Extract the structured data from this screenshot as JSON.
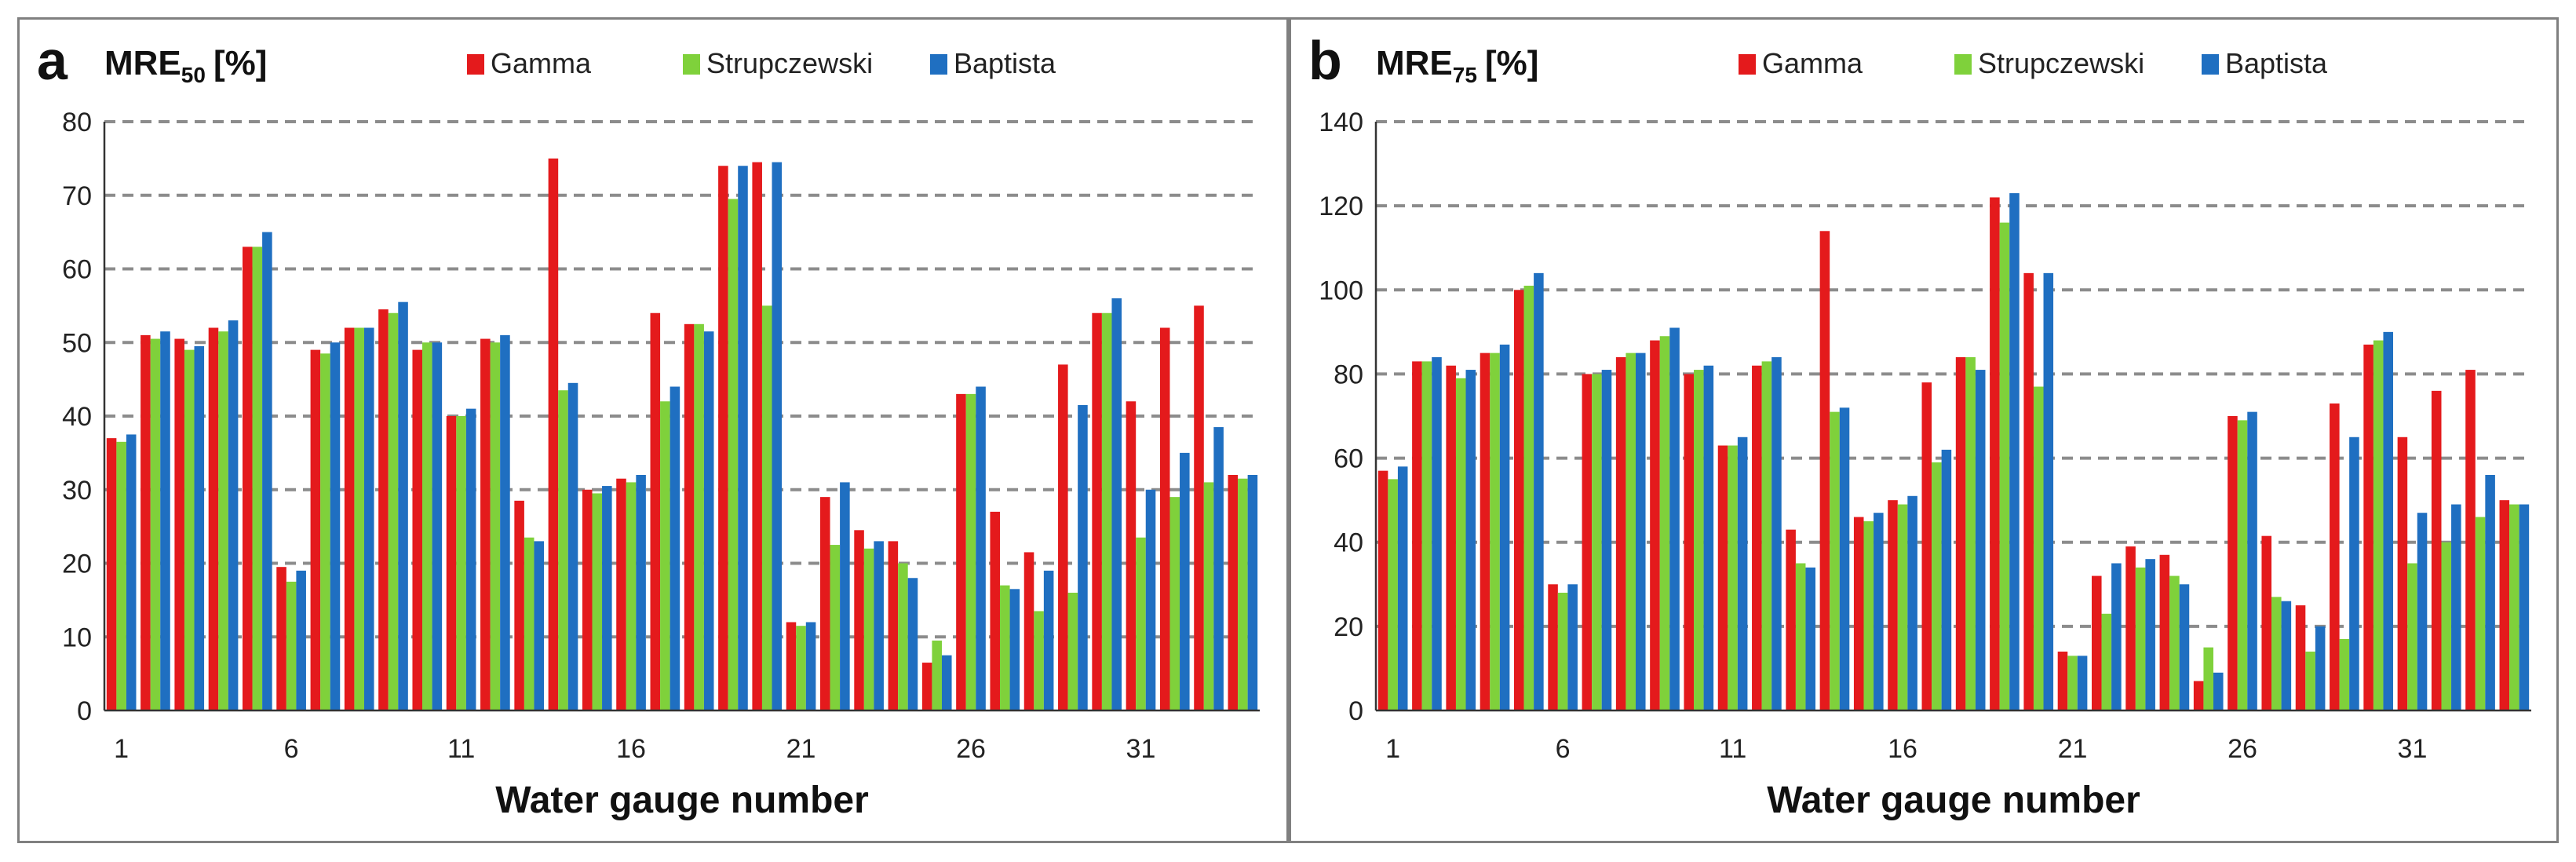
{
  "chart_data": [
    {
      "type": "bar",
      "panel_letter": "a",
      "title": "MRE",
      "title_subscript": "50",
      "title_unit": "[%]",
      "xlabel": "Water gauge number",
      "ylabel": "",
      "ylim": [
        0,
        80
      ],
      "yticks": [
        0,
        10,
        20,
        30,
        40,
        50,
        60,
        70,
        80
      ],
      "xtick_labels": [
        "1",
        "6",
        "11",
        "16",
        "21",
        "26",
        "31"
      ],
      "xtick_at": [
        1,
        6,
        11,
        16,
        21,
        26,
        31
      ],
      "categories": [
        1,
        2,
        3,
        4,
        5,
        6,
        7,
        8,
        9,
        10,
        11,
        12,
        13,
        14,
        15,
        16,
        17,
        18,
        19,
        20,
        21,
        22,
        23,
        24,
        25,
        26,
        27,
        28,
        29,
        30,
        31,
        32,
        33,
        34
      ],
      "grid": true,
      "legend_position": "top",
      "series": [
        {
          "name": "Gamma",
          "color": "#e41a1c",
          "values": [
            37,
            51,
            50.5,
            52,
            63,
            19.5,
            49,
            52,
            54.5,
            49,
            40,
            50.5,
            28.5,
            75,
            30,
            31.5,
            54,
            52.5,
            74,
            74.5,
            12,
            29,
            24.5,
            23,
            6.5,
            43,
            27,
            21.5,
            47,
            54,
            42,
            52,
            55,
            32
          ]
        },
        {
          "name": "Strupczewski",
          "color": "#7fd13b",
          "values": [
            36.5,
            50.5,
            49,
            51.5,
            63,
            17.5,
            48.5,
            52,
            54,
            50,
            40,
            50,
            23.5,
            43.5,
            29.5,
            31,
            42,
            52.5,
            69.5,
            55,
            11.5,
            22.5,
            22,
            20,
            9.5,
            43,
            17,
            13.5,
            16,
            54,
            23.5,
            29,
            31,
            31.5
          ]
        },
        {
          "name": "Baptista",
          "color": "#1f6fc1",
          "values": [
            37.5,
            51.5,
            49.5,
            53,
            65,
            19,
            50,
            52,
            55.5,
            50,
            41,
            51,
            23,
            44.5,
            30.5,
            32,
            44,
            51.5,
            74,
            74.5,
            12,
            31,
            23,
            18,
            7.5,
            44,
            16.5,
            19,
            41.5,
            56,
            30,
            35,
            38.5,
            32
          ]
        }
      ]
    },
    {
      "type": "bar",
      "panel_letter": "b",
      "title": "MRE",
      "title_subscript": "75",
      "title_unit": "[%]",
      "xlabel": "Water gauge number",
      "ylabel": "",
      "ylim": [
        0,
        140
      ],
      "yticks": [
        0,
        20,
        40,
        60,
        80,
        100,
        120,
        140
      ],
      "xtick_labels": [
        "1",
        "6",
        "11",
        "16",
        "21",
        "26",
        "31"
      ],
      "xtick_at": [
        1,
        6,
        11,
        16,
        21,
        26,
        31
      ],
      "categories": [
        1,
        2,
        3,
        4,
        5,
        6,
        7,
        8,
        9,
        10,
        11,
        12,
        13,
        14,
        15,
        16,
        17,
        18,
        19,
        20,
        21,
        22,
        23,
        24,
        25,
        26,
        27,
        28,
        29,
        30,
        31,
        32,
        33,
        34
      ],
      "grid": true,
      "legend_position": "top",
      "series": [
        {
          "name": "Gamma",
          "color": "#e41a1c",
          "values": [
            57,
            83,
            82,
            85,
            100,
            30,
            80,
            84,
            88,
            80,
            63,
            82,
            43,
            114,
            46,
            50,
            78,
            84,
            122,
            104,
            14,
            32,
            39,
            37,
            7,
            70,
            41.5,
            25,
            73,
            87,
            65,
            76,
            81,
            50
          ]
        },
        {
          "name": "Strupczewski",
          "color": "#7fd13b",
          "values": [
            55,
            83,
            79,
            85,
            101,
            28,
            80,
            85,
            89,
            81,
            63,
            83,
            35,
            71,
            45,
            49,
            59,
            84,
            116,
            77,
            13,
            23,
            34,
            32,
            15,
            69,
            27,
            14,
            17,
            88,
            35,
            40,
            46,
            49
          ]
        },
        {
          "name": "Baptista",
          "color": "#1f6fc1",
          "values": [
            58,
            84,
            81,
            87,
            104,
            30,
            81,
            85,
            91,
            82,
            65,
            84,
            34,
            72,
            47,
            51,
            62,
            81,
            123,
            104,
            13,
            35,
            36,
            30,
            9,
            71,
            26,
            20,
            65,
            90,
            47,
            49,
            56,
            49
          ]
        }
      ]
    }
  ]
}
